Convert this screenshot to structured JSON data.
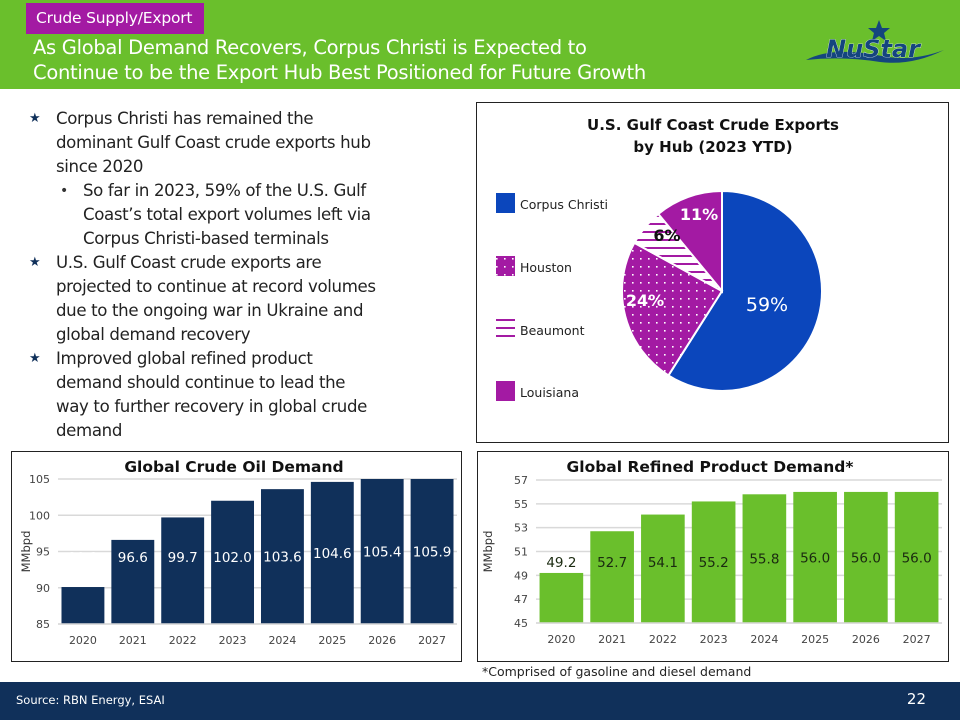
{
  "header": {
    "section_tag": "Crude Supply/Export",
    "title_line1": "As Global Demand Recovers, Corpus Christi is Expected to",
    "title_line2": "Continue to be the Export Hub Best Positioned for Future Growth",
    "logo_text": "NuStar",
    "colors": {
      "band": "#6abf2c",
      "tag": "#a31aa3",
      "logo": "#14457e"
    }
  },
  "bullets": [
    {
      "level": 1,
      "icon": "star-icon",
      "lines": [
        "Corpus Christi has remained the",
        "dominant Gulf Coast crude exports hub",
        "since 2020"
      ]
    },
    {
      "level": 2,
      "icon": "dot-icon",
      "lines": [
        "So far in 2023, 59% of the U.S. Gulf",
        "Coast’s total export volumes left via",
        "Corpus Christi-based terminals"
      ]
    },
    {
      "level": 1,
      "icon": "star-icon",
      "lines": [
        "U.S. Gulf Coast crude exports are",
        "projected to continue at record volumes",
        "due to the ongoing war in Ukraine and",
        "global demand recovery"
      ]
    },
    {
      "level": 1,
      "icon": "star-icon",
      "lines": [
        "Improved global refined product",
        "demand should continue to lead the",
        "way to further recovery in global crude",
        "demand"
      ]
    }
  ],
  "chart_data": [
    {
      "type": "pie",
      "title": "U.S. Gulf Coast Crude Exports",
      "subtitle": "by Hub (2023 YTD)",
      "legend_position": "left",
      "slices": [
        {
          "label": "Corpus Christi",
          "value": 59,
          "data_label": "59%",
          "color": "#0b46bc",
          "pattern": "solid"
        },
        {
          "label": "Houston",
          "value": 24,
          "data_label": "24%",
          "color": "#a31aa3",
          "pattern": "dots"
        },
        {
          "label": "Beaumont",
          "value": 6,
          "data_label": "6%",
          "color": "#a31aa3",
          "pattern": "horizontal-lines"
        },
        {
          "label": "Louisiana",
          "value": 11,
          "data_label": "11%",
          "color": "#a31aa3",
          "pattern": "solid"
        }
      ]
    },
    {
      "type": "bar",
      "title": "Global Crude Oil Demand",
      "xlabel": "",
      "ylabel": "MMbpd",
      "categories": [
        "2020",
        "2021",
        "2022",
        "2023",
        "2024",
        "2025",
        "2026",
        "2027"
      ],
      "values": [
        90.1,
        96.6,
        99.7,
        102.0,
        103.6,
        104.6,
        105.4,
        105.9
      ],
      "data_labels": [
        "90.1",
        "96.6",
        "99.7",
        "102.0",
        "103.6",
        "104.6",
        "105.4",
        "105.9"
      ],
      "ylim": [
        85,
        105
      ],
      "yticks": [
        85,
        90,
        95,
        100,
        105
      ],
      "grid": true,
      "bar_color": "#10305a",
      "label_color": "#ffffff"
    },
    {
      "type": "bar",
      "title": "Global Refined Product Demand*",
      "xlabel": "",
      "ylabel": "MMbpd",
      "categories": [
        "2020",
        "2021",
        "2022",
        "2023",
        "2024",
        "2025",
        "2026",
        "2027"
      ],
      "values": [
        49.2,
        52.7,
        54.1,
        55.2,
        55.8,
        56.0,
        56.0,
        56.0
      ],
      "data_labels": [
        "49.2",
        "52.7",
        "54.1",
        "55.2",
        "55.8",
        "56.0",
        "56.0",
        "56.0"
      ],
      "ylim": [
        45,
        57
      ],
      "yticks": [
        45,
        47,
        49,
        51,
        53,
        55,
        57
      ],
      "grid": true,
      "bar_color": "#6abf2c",
      "label_color": "#1a2a10"
    }
  ],
  "footnote": "*Comprised of gasoline and diesel demand",
  "footer": {
    "source": "Source:  RBN Energy, ESAI",
    "page_number": "22",
    "color": "#10305a"
  }
}
